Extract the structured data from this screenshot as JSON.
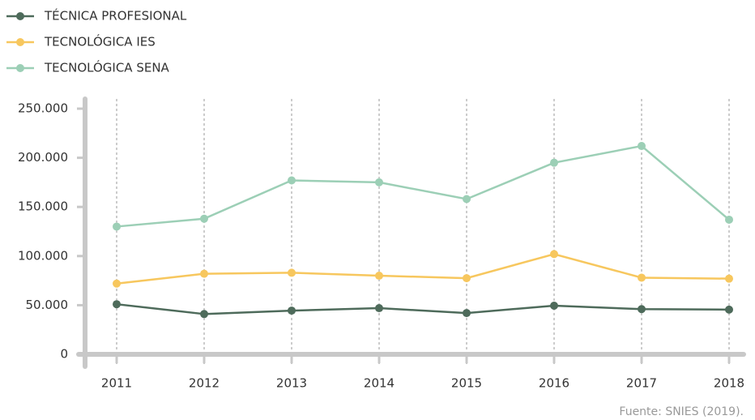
{
  "chart_data": {
    "type": "line",
    "categories": [
      "2011",
      "2012",
      "2013",
      "2014",
      "2015",
      "2016",
      "2017",
      "2018"
    ],
    "series": [
      {
        "name": "TÉCNICA PROFESIONAL",
        "color": "#4e6b5b",
        "values": [
          51000,
          41000,
          44500,
          47000,
          42000,
          49500,
          46000,
          45500
        ]
      },
      {
        "name": "TECNOLÓGICA IES",
        "color": "#f7c75e",
        "values": [
          72000,
          82000,
          83000,
          80000,
          77500,
          102000,
          78000,
          77000
        ]
      },
      {
        "name": "TECNOLÓGICA SENA",
        "color": "#9ccfb6",
        "values": [
          130000,
          138000,
          177000,
          175000,
          158000,
          195000,
          212000,
          137000
        ]
      }
    ],
    "ylim": [
      0,
      250000
    ],
    "yticks": [
      0,
      {
        "value": 50000,
        "label": "50.000"
      },
      {
        "value": 100000,
        "label": "100.000"
      },
      {
        "value": 150000,
        "label": "150.000"
      },
      {
        "value": 200000,
        "label": "200.000"
      },
      {
        "value": 250000,
        "label": "250.000"
      }
    ],
    "grid": true,
    "legend": "top-left",
    "source": "Fuente: SNIES (2019)."
  }
}
